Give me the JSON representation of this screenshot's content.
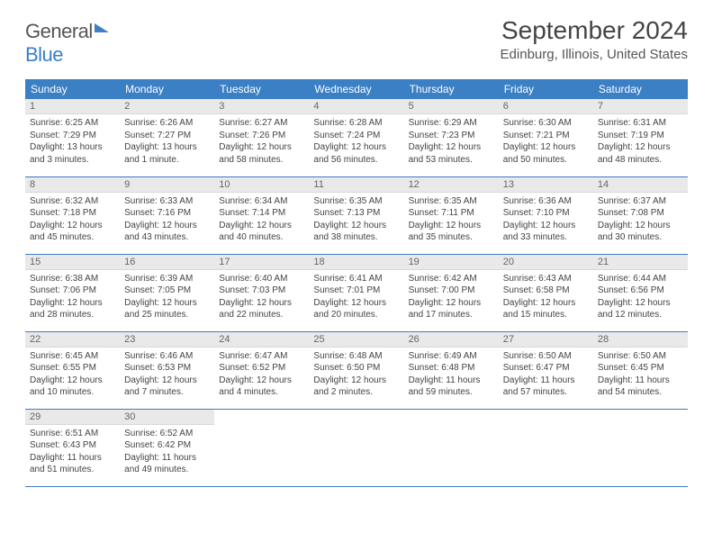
{
  "logo": {
    "word1": "General",
    "word2": "Blue"
  },
  "title": "September 2024",
  "location": "Edinburg, Illinois, United States",
  "header_color": "#3b7fc4",
  "daynum_bg": "#e9e9e9",
  "border_color": "#3b7fc4",
  "weekdays": [
    "Sunday",
    "Monday",
    "Tuesday",
    "Wednesday",
    "Thursday",
    "Friday",
    "Saturday"
  ],
  "weeks": [
    [
      {
        "n": "1",
        "sr": "Sunrise: 6:25 AM",
        "ss": "Sunset: 7:29 PM",
        "dl": "Daylight: 13 hours and 3 minutes."
      },
      {
        "n": "2",
        "sr": "Sunrise: 6:26 AM",
        "ss": "Sunset: 7:27 PM",
        "dl": "Daylight: 13 hours and 1 minute."
      },
      {
        "n": "3",
        "sr": "Sunrise: 6:27 AM",
        "ss": "Sunset: 7:26 PM",
        "dl": "Daylight: 12 hours and 58 minutes."
      },
      {
        "n": "4",
        "sr": "Sunrise: 6:28 AM",
        "ss": "Sunset: 7:24 PM",
        "dl": "Daylight: 12 hours and 56 minutes."
      },
      {
        "n": "5",
        "sr": "Sunrise: 6:29 AM",
        "ss": "Sunset: 7:23 PM",
        "dl": "Daylight: 12 hours and 53 minutes."
      },
      {
        "n": "6",
        "sr": "Sunrise: 6:30 AM",
        "ss": "Sunset: 7:21 PM",
        "dl": "Daylight: 12 hours and 50 minutes."
      },
      {
        "n": "7",
        "sr": "Sunrise: 6:31 AM",
        "ss": "Sunset: 7:19 PM",
        "dl": "Daylight: 12 hours and 48 minutes."
      }
    ],
    [
      {
        "n": "8",
        "sr": "Sunrise: 6:32 AM",
        "ss": "Sunset: 7:18 PM",
        "dl": "Daylight: 12 hours and 45 minutes."
      },
      {
        "n": "9",
        "sr": "Sunrise: 6:33 AM",
        "ss": "Sunset: 7:16 PM",
        "dl": "Daylight: 12 hours and 43 minutes."
      },
      {
        "n": "10",
        "sr": "Sunrise: 6:34 AM",
        "ss": "Sunset: 7:14 PM",
        "dl": "Daylight: 12 hours and 40 minutes."
      },
      {
        "n": "11",
        "sr": "Sunrise: 6:35 AM",
        "ss": "Sunset: 7:13 PM",
        "dl": "Daylight: 12 hours and 38 minutes."
      },
      {
        "n": "12",
        "sr": "Sunrise: 6:35 AM",
        "ss": "Sunset: 7:11 PM",
        "dl": "Daylight: 12 hours and 35 minutes."
      },
      {
        "n": "13",
        "sr": "Sunrise: 6:36 AM",
        "ss": "Sunset: 7:10 PM",
        "dl": "Daylight: 12 hours and 33 minutes."
      },
      {
        "n": "14",
        "sr": "Sunrise: 6:37 AM",
        "ss": "Sunset: 7:08 PM",
        "dl": "Daylight: 12 hours and 30 minutes."
      }
    ],
    [
      {
        "n": "15",
        "sr": "Sunrise: 6:38 AM",
        "ss": "Sunset: 7:06 PM",
        "dl": "Daylight: 12 hours and 28 minutes."
      },
      {
        "n": "16",
        "sr": "Sunrise: 6:39 AM",
        "ss": "Sunset: 7:05 PM",
        "dl": "Daylight: 12 hours and 25 minutes."
      },
      {
        "n": "17",
        "sr": "Sunrise: 6:40 AM",
        "ss": "Sunset: 7:03 PM",
        "dl": "Daylight: 12 hours and 22 minutes."
      },
      {
        "n": "18",
        "sr": "Sunrise: 6:41 AM",
        "ss": "Sunset: 7:01 PM",
        "dl": "Daylight: 12 hours and 20 minutes."
      },
      {
        "n": "19",
        "sr": "Sunrise: 6:42 AM",
        "ss": "Sunset: 7:00 PM",
        "dl": "Daylight: 12 hours and 17 minutes."
      },
      {
        "n": "20",
        "sr": "Sunrise: 6:43 AM",
        "ss": "Sunset: 6:58 PM",
        "dl": "Daylight: 12 hours and 15 minutes."
      },
      {
        "n": "21",
        "sr": "Sunrise: 6:44 AM",
        "ss": "Sunset: 6:56 PM",
        "dl": "Daylight: 12 hours and 12 minutes."
      }
    ],
    [
      {
        "n": "22",
        "sr": "Sunrise: 6:45 AM",
        "ss": "Sunset: 6:55 PM",
        "dl": "Daylight: 12 hours and 10 minutes."
      },
      {
        "n": "23",
        "sr": "Sunrise: 6:46 AM",
        "ss": "Sunset: 6:53 PM",
        "dl": "Daylight: 12 hours and 7 minutes."
      },
      {
        "n": "24",
        "sr": "Sunrise: 6:47 AM",
        "ss": "Sunset: 6:52 PM",
        "dl": "Daylight: 12 hours and 4 minutes."
      },
      {
        "n": "25",
        "sr": "Sunrise: 6:48 AM",
        "ss": "Sunset: 6:50 PM",
        "dl": "Daylight: 12 hours and 2 minutes."
      },
      {
        "n": "26",
        "sr": "Sunrise: 6:49 AM",
        "ss": "Sunset: 6:48 PM",
        "dl": "Daylight: 11 hours and 59 minutes."
      },
      {
        "n": "27",
        "sr": "Sunrise: 6:50 AM",
        "ss": "Sunset: 6:47 PM",
        "dl": "Daylight: 11 hours and 57 minutes."
      },
      {
        "n": "28",
        "sr": "Sunrise: 6:50 AM",
        "ss": "Sunset: 6:45 PM",
        "dl": "Daylight: 11 hours and 54 minutes."
      }
    ],
    [
      {
        "n": "29",
        "sr": "Sunrise: 6:51 AM",
        "ss": "Sunset: 6:43 PM",
        "dl": "Daylight: 11 hours and 51 minutes."
      },
      {
        "n": "30",
        "sr": "Sunrise: 6:52 AM",
        "ss": "Sunset: 6:42 PM",
        "dl": "Daylight: 11 hours and 49 minutes."
      },
      null,
      null,
      null,
      null,
      null
    ]
  ]
}
